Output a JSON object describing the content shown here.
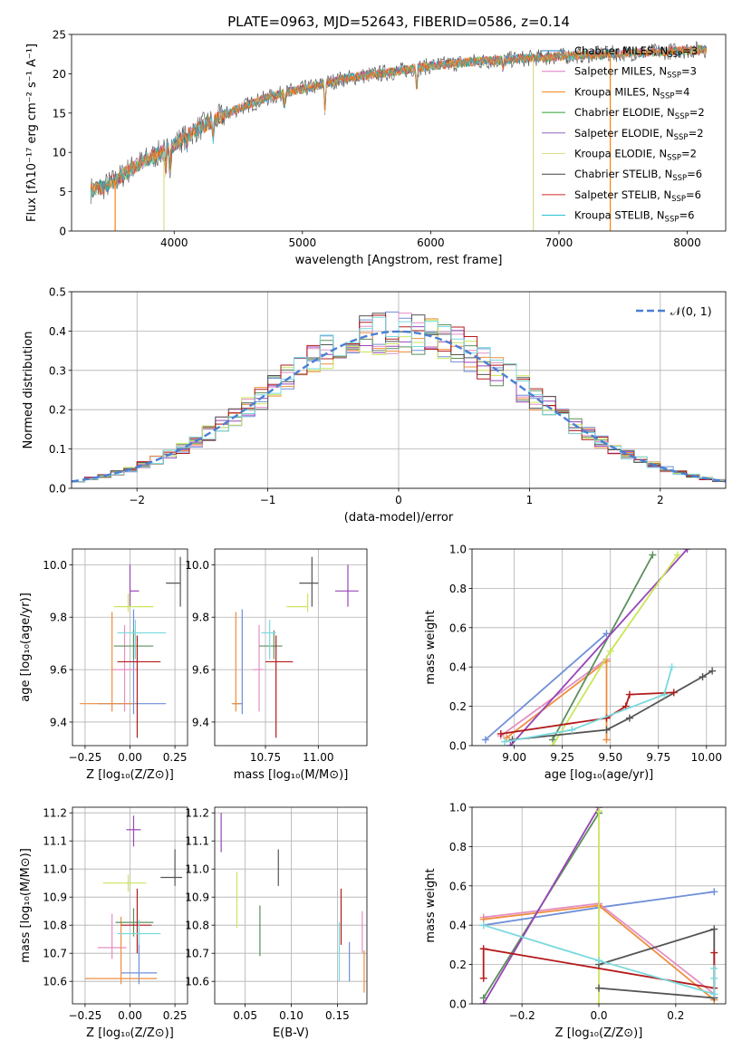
{
  "figure": {
    "title": "PLATE=0963, MJD=52643, FIBERID=0586, z=0.14"
  },
  "chart_data": [
    {
      "id": "spectrum",
      "type": "line",
      "title": "PLATE=0963, MJD=52643, FIBERID=0586, z=0.14",
      "xlabel": "wavelength [Angstrom, rest frame]",
      "ylabel": "Flux [fλ10⁻¹⁷ erg cm⁻² s⁻¹ A⁻¹]",
      "xlim": [
        3200,
        8300
      ],
      "ylim": [
        0,
        25
      ],
      "xticks": [
        4000,
        5000,
        6000,
        7000,
        8000
      ],
      "yticks": [
        0,
        5,
        10,
        15,
        20,
        25
      ],
      "grid": false,
      "legend_position": "upper-right",
      "continuum": {
        "x": [
          3350,
          3450,
          3550,
          3650,
          3750,
          3850,
          3950,
          4050,
          4150,
          4250,
          4350,
          4500,
          4700,
          4900,
          5100,
          5300,
          5500,
          5700,
          6000,
          6300,
          6600,
          6900,
          7200,
          7500,
          7800,
          8000,
          8150
        ],
        "y": [
          5.2,
          5.6,
          6.5,
          7.8,
          8.8,
          9.6,
          10.4,
          11.6,
          12.7,
          13.6,
          14.4,
          15.6,
          16.8,
          17.7,
          18.4,
          19.3,
          19.8,
          20.2,
          21.0,
          21.5,
          21.8,
          22.1,
          22.4,
          22.6,
          22.8,
          23.0,
          23.1
        ]
      },
      "series": [
        {
          "name": "Chabrier MILES, N_SSP=3",
          "color": "#1f77b4"
        },
        {
          "name": "Salpeter MILES, N_SSP=3",
          "color": "#e377c2"
        },
        {
          "name": "Kroupa MILES, N_SSP=4",
          "color": "#ff7f0e"
        },
        {
          "name": "Chabrier ELODIE, N_SSP=2",
          "color": "#2ca02c"
        },
        {
          "name": "Salpeter ELODIE, N_SSP=2",
          "color": "#9467bd"
        },
        {
          "name": "Kroupa ELODIE, N_SSP=2",
          "color": "#dbdb8d"
        },
        {
          "name": "Chabrier STELIB, N_SSP=6",
          "color": "#404040"
        },
        {
          "name": "Salpeter STELIB, N_SSP=6",
          "color": "#d62728"
        },
        {
          "name": "Kroupa STELIB, N_SSP=6",
          "color": "#17becf"
        }
      ]
    },
    {
      "id": "residuals",
      "type": "bar",
      "xlabel": "(data-model)/error",
      "ylabel": "Normed distribution",
      "xlim": [
        -2.5,
        2.5
      ],
      "ylim": [
        0,
        0.5
      ],
      "xticks": [
        -2,
        -1,
        0,
        1,
        2
      ],
      "yticks": [
        0.0,
        0.1,
        0.2,
        0.3,
        0.4,
        0.5
      ],
      "grid": true,
      "legend": [
        "𝒩(0, 1)"
      ],
      "legend_position": "upper-right",
      "reference": {
        "name": "𝒩(0, 1)",
        "mean": 0,
        "sigma": 1,
        "color": "#4a7fd4"
      },
      "hist_colors": [
        "#6f8fd8",
        "#e48fc4",
        "#ee8e3e",
        "#5d8f5d",
        "#9845b8",
        "#c9e65b",
        "#555555",
        "#b31b1b",
        "#7ad9dd"
      ],
      "bin_width": 0.1
    },
    {
      "id": "age-Z",
      "type": "scatter",
      "xlabel": "Z [log₁₀(Z/Z⊙)]",
      "ylabel": "age  [log₁₀(age/yr)]",
      "xlim": [
        -0.32,
        0.32
      ],
      "ylim": [
        9.31,
        10.06
      ],
      "xticks": [
        -0.25,
        0.0,
        0.25
      ],
      "yticks": [
        9.4,
        9.6,
        9.8,
        10.0
      ],
      "grid": true,
      "points": [
        {
          "color": "#6f8fd8",
          "x": 0.02,
          "y": 9.47,
          "xerr": [
            0.2,
            0.18
          ],
          "yerr": [
            0.04,
            0.36
          ]
        },
        {
          "color": "#e48fc4",
          "x": -0.03,
          "y": 9.6,
          "xerr": [
            0.07,
            0.07
          ],
          "yerr": [
            0.16,
            0.17
          ]
        },
        {
          "color": "#ee8e3e",
          "x": -0.1,
          "y": 9.47,
          "xerr": [
            0.18,
            0.12
          ],
          "yerr": [
            0.03,
            0.35
          ]
        },
        {
          "color": "#5d8f5d",
          "x": 0.02,
          "y": 9.69,
          "xerr": [
            0.11,
            0.11
          ],
          "yerr": [
            0.05,
            0.06
          ]
        },
        {
          "color": "#9845b8",
          "x": 0.0,
          "y": 9.9,
          "xerr": [
            0.0,
            0.05
          ],
          "yerr": [
            0.06,
            0.1
          ]
        },
        {
          "color": "#c9e65b",
          "x": -0.01,
          "y": 9.84,
          "xerr": [
            0.08,
            0.14
          ],
          "yerr": [
            0.02,
            0.05
          ]
        },
        {
          "color": "#555555",
          "x": 0.28,
          "y": 9.93,
          "xerr": [
            0.08,
            0.0
          ],
          "yerr": [
            0.09,
            0.1
          ]
        },
        {
          "color": "#b31b1b",
          "x": 0.04,
          "y": 9.63,
          "xerr": [
            0.11,
            0.13
          ],
          "yerr": [
            0.29,
            0.1
          ]
        },
        {
          "color": "#7ad9dd",
          "x": 0.03,
          "y": 9.74,
          "xerr": [
            0.1,
            0.17
          ],
          "yerr": [
            0.1,
            0.05
          ]
        }
      ]
    },
    {
      "id": "age-mass",
      "type": "scatter",
      "xlabel": "mass [log₁₀(M/M⊙)]",
      "xlim": [
        10.51,
        11.23
      ],
      "ylim": [
        9.31,
        10.06
      ],
      "xticks": [
        10.75,
        11.0
      ],
      "yticks": [
        9.4,
        9.6,
        9.8,
        10.0
      ],
      "grid": true,
      "points": [
        {
          "color": "#6f8fd8",
          "x": 10.64,
          "y": 9.47,
          "xerr": [
            0.04,
            0.0
          ],
          "yerr": [
            0.04,
            0.36
          ]
        },
        {
          "color": "#e48fc4",
          "x": 10.72,
          "y": 9.6,
          "xerr": [
            0.03,
            0.02
          ],
          "yerr": [
            0.16,
            0.17
          ]
        },
        {
          "color": "#ee8e3e",
          "x": 10.61,
          "y": 9.47,
          "xerr": [
            0.02,
            0.02
          ],
          "yerr": [
            0.03,
            0.35
          ]
        },
        {
          "color": "#5d8f5d",
          "x": 10.79,
          "y": 9.69,
          "xerr": [
            0.07,
            0.04
          ],
          "yerr": [
            0.05,
            0.06
          ]
        },
        {
          "color": "#9845b8",
          "x": 11.14,
          "y": 9.9,
          "xerr": [
            0.06,
            0.05
          ],
          "yerr": [
            0.06,
            0.1
          ]
        },
        {
          "color": "#c9e65b",
          "x": 10.95,
          "y": 9.84,
          "xerr": [
            0.1,
            0.0
          ],
          "yerr": [
            0.02,
            0.05
          ]
        },
        {
          "color": "#555555",
          "x": 10.97,
          "y": 9.93,
          "xerr": [
            0.06,
            0.03
          ],
          "yerr": [
            0.09,
            0.1
          ]
        },
        {
          "color": "#b31b1b",
          "x": 10.8,
          "y": 9.63,
          "xerr": [
            0.05,
            0.08
          ],
          "yerr": [
            0.29,
            0.1
          ]
        },
        {
          "color": "#7ad9dd",
          "x": 10.77,
          "y": 9.74,
          "xerr": [
            0.04,
            0.03
          ],
          "yerr": [
            0.1,
            0.05
          ]
        }
      ]
    },
    {
      "id": "massweight-age",
      "type": "line",
      "xlabel": "age  [log₁₀(age/yr)]",
      "ylabel": "mass weight",
      "xlim": [
        8.78,
        10.1
      ],
      "ylim": [
        0,
        1
      ],
      "xticks": [
        9.0,
        9.25,
        9.5,
        9.75,
        10.0
      ],
      "yticks": [
        0.0,
        0.2,
        0.4,
        0.6,
        0.8,
        1.0
      ],
      "grid": true,
      "series": [
        {
          "color": "#6f8fd8",
          "x": [
            8.85,
            9.48
          ],
          "y": [
            0.03,
            0.57
          ]
        },
        {
          "color": "#e48fc4",
          "x": [
            8.93,
            9.48
          ],
          "y": [
            0.05,
            0.44
          ]
        },
        {
          "color": "#ee8e3e",
          "x": [
            8.96,
            9.48,
            9.48
          ],
          "y": [
            0.04,
            0.43,
            0.03
          ]
        },
        {
          "color": "#5d8f5d",
          "x": [
            9.2,
            9.72
          ],
          "y": [
            0.03,
            0.97
          ]
        },
        {
          "color": "#9845b8",
          "x": [
            8.98,
            9.9
          ],
          "y": [
            0.0,
            1.0
          ]
        },
        {
          "color": "#c9e65b",
          "x": [
            9.2,
            9.5,
            9.85
          ],
          "y": [
            0.0,
            0.48,
            0.97
          ]
        },
        {
          "color": "#555555",
          "x": [
            8.99,
            9.48,
            9.6,
            9.98,
            10.03
          ],
          "y": [
            0.03,
            0.08,
            0.14,
            0.35,
            0.38
          ]
        },
        {
          "color": "#b31b1b",
          "x": [
            8.93,
            9.48,
            9.58,
            9.6,
            9.83
          ],
          "y": [
            0.06,
            0.14,
            0.2,
            0.26,
            0.27
          ]
        },
        {
          "color": "#7ad9dd",
          "x": [
            8.95,
            9.3,
            9.78,
            9.82
          ],
          "y": [
            0.02,
            0.08,
            0.26,
            0.4
          ]
        }
      ]
    },
    {
      "id": "mass-Z",
      "type": "scatter",
      "xlabel": "Z [log₁₀(Z/Z⊙)]",
      "ylabel": "mass [log₁₀(M/M⊙)]",
      "xlim": [
        -0.32,
        0.32
      ],
      "ylim": [
        10.52,
        11.22
      ],
      "xticks": [
        -0.25,
        0.0,
        0.25
      ],
      "yticks": [
        10.6,
        10.7,
        10.8,
        10.9,
        11.0,
        11.1,
        11.2
      ],
      "grid": true,
      "points": [
        {
          "color": "#6f8fd8",
          "x": 0.05,
          "y": 10.63,
          "xerr": [
            0.1,
            0.1
          ],
          "yerr": [
            0.04,
            0.11
          ]
        },
        {
          "color": "#e48fc4",
          "x": -0.1,
          "y": 10.72,
          "xerr": [
            0.08,
            0.08
          ],
          "yerr": [
            0.04,
            0.12
          ]
        },
        {
          "color": "#ee8e3e",
          "x": -0.05,
          "y": 10.61,
          "xerr": [
            0.2,
            0.2
          ],
          "yerr": [
            0.02,
            0.22
          ]
        },
        {
          "color": "#5d8f5d",
          "x": 0.02,
          "y": 10.81,
          "xerr": [
            0.1,
            0.11
          ],
          "yerr": [
            0.05,
            0.05
          ]
        },
        {
          "color": "#9845b8",
          "x": 0.02,
          "y": 11.14,
          "xerr": [
            0.04,
            0.04
          ],
          "yerr": [
            0.06,
            0.05
          ]
        },
        {
          "color": "#c9e65b",
          "x": -0.01,
          "y": 10.95,
          "xerr": [
            0.14,
            0.1
          ],
          "yerr": [
            0.03,
            0.03
          ]
        },
        {
          "color": "#555555",
          "x": 0.25,
          "y": 10.97,
          "xerr": [
            0.08,
            0.04
          ],
          "yerr": [
            0.03,
            0.1
          ]
        },
        {
          "color": "#b31b1b",
          "x": 0.04,
          "y": 10.8,
          "xerr": [
            0.09,
            0.08
          ],
          "yerr": [
            0.1,
            0.13
          ]
        },
        {
          "color": "#7ad9dd",
          "x": 0.05,
          "y": 10.77,
          "xerr": [
            0.12,
            0.12
          ],
          "yerr": [
            0.04,
            0.05
          ]
        }
      ]
    },
    {
      "id": "mass-EBV",
      "type": "scatter",
      "xlabel": "E(B-V)",
      "xlim": [
        0.017,
        0.182
      ],
      "ylim": [
        10.52,
        11.22
      ],
      "xticks": [
        0.05,
        0.1,
        0.15
      ],
      "yticks": [
        10.6,
        10.7,
        10.8,
        10.9,
        11.0,
        11.1,
        11.2
      ],
      "grid": true,
      "points": [
        {
          "color": "#6f8fd8",
          "x": 0.163,
          "y": 10.64,
          "xerr": [
            0,
            0
          ],
          "yerr": [
            0.04,
            0.1
          ]
        },
        {
          "color": "#e48fc4",
          "x": 0.177,
          "y": 10.72,
          "xerr": [
            0,
            0
          ],
          "yerr": [
            0.02,
            0.13
          ]
        },
        {
          "color": "#ee8e3e",
          "x": 0.179,
          "y": 10.61,
          "xerr": [
            0,
            0
          ],
          "yerr": [
            0.05,
            0.1
          ]
        },
        {
          "color": "#5d8f5d",
          "x": 0.066,
          "y": 10.78,
          "xerr": [
            0,
            0
          ],
          "yerr": [
            0.09,
            0.09
          ]
        },
        {
          "color": "#9845b8",
          "x": 0.024,
          "y": 11.13,
          "xerr": [
            0,
            0
          ],
          "yerr": [
            0.07,
            0.07
          ]
        },
        {
          "color": "#c9e65b",
          "x": 0.041,
          "y": 10.89,
          "xerr": [
            0,
            0
          ],
          "yerr": [
            0.1,
            0.1
          ]
        },
        {
          "color": "#555555",
          "x": 0.086,
          "y": 11.0,
          "xerr": [
            0,
            0
          ],
          "yerr": [
            0.06,
            0.07
          ]
        },
        {
          "color": "#b31b1b",
          "x": 0.154,
          "y": 10.83,
          "xerr": [
            0,
            0
          ],
          "yerr": [
            0.1,
            0.1
          ]
        },
        {
          "color": "#7ad9dd",
          "x": 0.152,
          "y": 10.7,
          "xerr": [
            0,
            0
          ],
          "yerr": [
            0.1,
            0.11
          ]
        }
      ]
    },
    {
      "id": "massweight-Z",
      "type": "line",
      "xlabel": "Z [log₁₀(Z/Z⊙)]",
      "ylabel": "mass weight",
      "xlim": [
        -0.33,
        0.33
      ],
      "ylim": [
        0,
        1
      ],
      "xticks": [
        -0.2,
        0.0,
        0.2
      ],
      "yticks": [
        0.0,
        0.2,
        0.4,
        0.6,
        0.8,
        1.0
      ],
      "grid": true,
      "series": [
        {
          "color": "#6f8fd8",
          "x": [
            -0.3,
            0.0,
            0.3
          ],
          "y": [
            0.4,
            0.49,
            0.57
          ]
        },
        {
          "color": "#e48fc4",
          "x": [
            -0.3,
            0.0,
            0.3
          ],
          "y": [
            0.44,
            0.51,
            0.05
          ]
        },
        {
          "color": "#ee8e3e",
          "x": [
            -0.3,
            0.0,
            0.3
          ],
          "y": [
            0.43,
            0.5,
            0.02
          ]
        },
        {
          "color": "#5d8f5d",
          "x": [
            -0.3,
            0.0
          ],
          "y": [
            0.03,
            0.97
          ]
        },
        {
          "color": "#9845b8",
          "x": [
            -0.3,
            0.0
          ],
          "y": [
            0.0,
            1.0
          ]
        },
        {
          "color": "#c9e65b",
          "x": [
            0.0,
            0.0
          ],
          "y": [
            0.0,
            0.98
          ]
        },
        {
          "color": "#555555",
          "x": [
            0.0,
            0.3,
            0.3,
            0.0
          ],
          "y": [
            0.08,
            0.03,
            0.38,
            0.2
          ]
        },
        {
          "color": "#b31b1b",
          "x": [
            -0.3,
            -0.3,
            0.3,
            0.3
          ],
          "y": [
            0.13,
            0.28,
            0.08,
            0.26
          ]
        },
        {
          "color": "#7ad9dd",
          "x": [
            -0.3,
            0.0,
            0.3,
            0.3,
            0.3
          ],
          "y": [
            0.4,
            0.22,
            0.05,
            0.18,
            0.13
          ]
        }
      ]
    }
  ]
}
